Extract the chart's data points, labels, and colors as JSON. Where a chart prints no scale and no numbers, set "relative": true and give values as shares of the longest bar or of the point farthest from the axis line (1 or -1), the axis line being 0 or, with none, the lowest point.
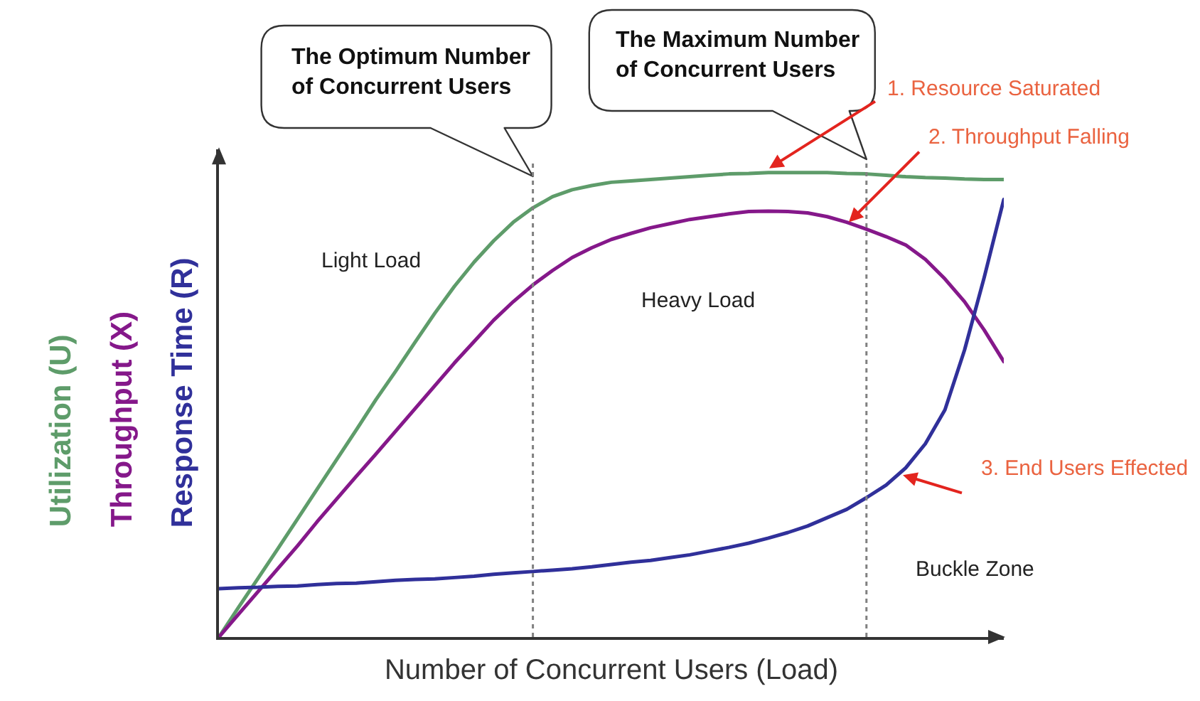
{
  "chart_data": {
    "type": "line",
    "relative": true,
    "xlabel": "Number of Concurrent Users (Load)",
    "categories": [
      null,
      null,
      null,
      null,
      null,
      null,
      null,
      null,
      null,
      null,
      null,
      null,
      null,
      null,
      null,
      null,
      null,
      null,
      null,
      null,
      null,
      null,
      null,
      null,
      null,
      null,
      null,
      null,
      null,
      null,
      null,
      null,
      null,
      null,
      null,
      null,
      null,
      null,
      null,
      null,
      null
    ],
    "series": [
      {
        "name": "Utilization (U)",
        "color": "#5e9c6a",
        "values": [
          0,
          0.064,
          0.127,
          0.19,
          0.254,
          0.318,
          0.382,
          0.446,
          0.511,
          0.572,
          0.635,
          0.697,
          0.755,
          0.807,
          0.853,
          0.893,
          0.924,
          0.948,
          0.963,
          0.972,
          0.979,
          0.982,
          0.985,
          0.988,
          0.991,
          0.994,
          0.997,
          0.998,
          1,
          1,
          1,
          1,
          0.998,
          0.997,
          0.994,
          0.991,
          0.989,
          0.988,
          0.986,
          0.985,
          0.985
        ]
      },
      {
        "name": "Throughput (X)",
        "color": "#85188a",
        "values": [
          0,
          0.049,
          0.098,
          0.147,
          0.196,
          0.248,
          0.297,
          0.346,
          0.394,
          0.443,
          0.492,
          0.541,
          0.59,
          0.636,
          0.682,
          0.722,
          0.758,
          0.789,
          0.817,
          0.838,
          0.856,
          0.869,
          0.881,
          0.89,
          0.899,
          0.905,
          0.911,
          0.916,
          0.917,
          0.916,
          0.913,
          0.905,
          0.893,
          0.878,
          0.862,
          0.844,
          0.813,
          0.771,
          0.722,
          0.661,
          0.593
        ]
      },
      {
        "name": "Response Time (R)",
        "color": "#30309a",
        "values": [
          0.104,
          0.106,
          0.107,
          0.109,
          0.11,
          0.113,
          0.115,
          0.116,
          0.119,
          0.122,
          0.124,
          0.125,
          0.128,
          0.131,
          0.135,
          0.138,
          0.141,
          0.144,
          0.147,
          0.151,
          0.156,
          0.161,
          0.165,
          0.171,
          0.177,
          0.185,
          0.193,
          0.202,
          0.213,
          0.225,
          0.239,
          0.257,
          0.275,
          0.3,
          0.327,
          0.364,
          0.416,
          0.489,
          0.618,
          0.774,
          0.942
        ]
      }
    ],
    "annotations": [
      "The Optimum Number of Concurrent Users",
      "The Maximum Number of Concurrent Users",
      "Light Load",
      "Heavy Load",
      "Buckle Zone",
      "1. Resource Saturated",
      "2. Throughput Falling",
      "3. End Users Effected"
    ]
  }
}
